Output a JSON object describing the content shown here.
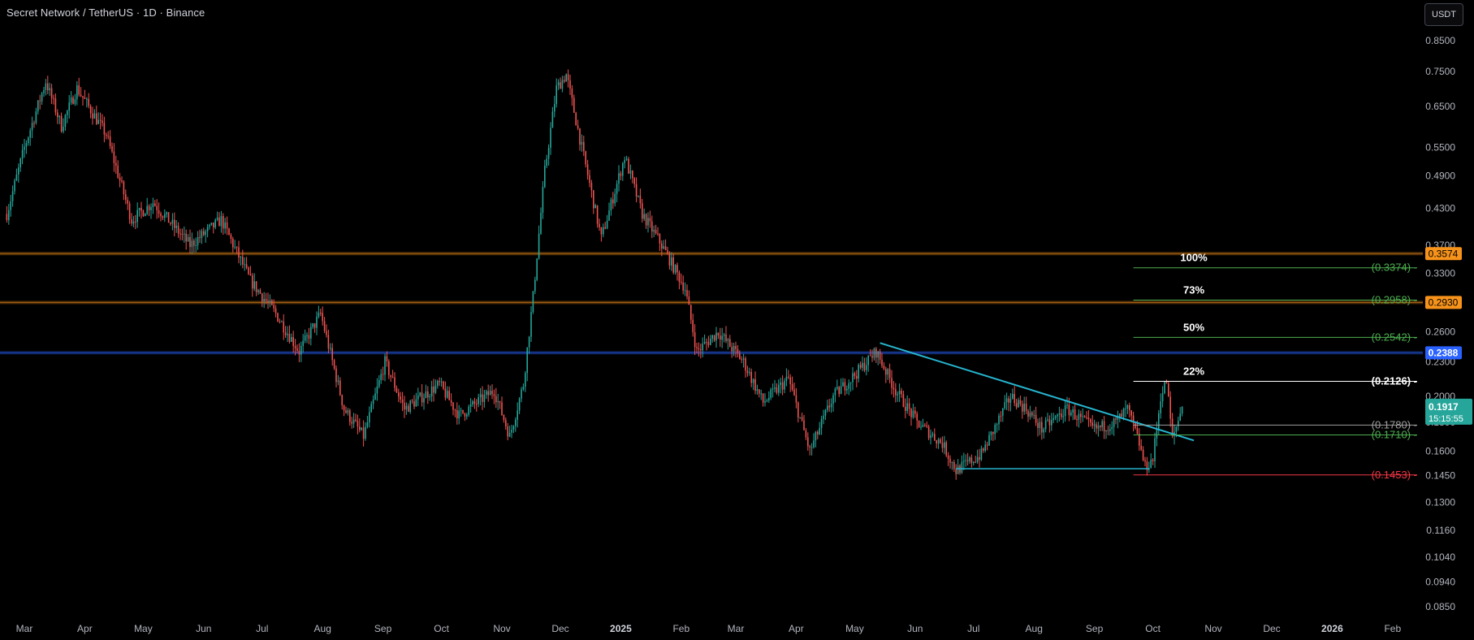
{
  "header": {
    "title": "Secret Network / TetherUS · 1D · Binance",
    "currency_button": "USDT"
  },
  "colors": {
    "background": "#000000",
    "up": "#26a69a",
    "down": "#ef5350",
    "trendline": "#26b5cf",
    "support_line": "#26b5cf",
    "level_white": "#ffffff",
    "level_green": "#4caf50",
    "level_gray": "#9e9e9e",
    "level_red": "#f23645",
    "band_orange": "#f7931a",
    "band_blue": "#2962ff",
    "axis_text": "#b2b5be"
  },
  "chart_data": {
    "type": "candlestick",
    "symbol": "Secret Network / TetherUS",
    "interval": "1D",
    "exchange": "Binance",
    "y_scale": "log",
    "ylim": [
      0.082,
      0.89
    ],
    "price_ticks": [
      "0.8500",
      "0.7500",
      "0.6500",
      "0.5500",
      "0.4900",
      "0.4300",
      "0.3700",
      "0.3300",
      "0.2900",
      "0.2600",
      "0.2300",
      "0.2000",
      "0.1800",
      "0.1600",
      "0.1450",
      "0.1300",
      "0.1160",
      "0.1040",
      "0.0940",
      "0.0850"
    ],
    "time_ticks": [
      {
        "label": "Mar",
        "date": "2024-03-01",
        "bold": false
      },
      {
        "label": "Apr",
        "date": "2024-04-01",
        "bold": false
      },
      {
        "label": "May",
        "date": "2024-05-01",
        "bold": false
      },
      {
        "label": "Jun",
        "date": "2024-06-01",
        "bold": false
      },
      {
        "label": "Jul",
        "date": "2024-07-01",
        "bold": false
      },
      {
        "label": "Aug",
        "date": "2024-08-01",
        "bold": false
      },
      {
        "label": "Sep",
        "date": "2024-09-01",
        "bold": false
      },
      {
        "label": "Oct",
        "date": "2024-10-01",
        "bold": false
      },
      {
        "label": "Nov",
        "date": "2024-11-01",
        "bold": false
      },
      {
        "label": "Dec",
        "date": "2024-12-01",
        "bold": false
      },
      {
        "label": "2025",
        "date": "2025-01-01",
        "bold": true
      },
      {
        "label": "Feb",
        "date": "2025-02-01",
        "bold": false
      },
      {
        "label": "Mar",
        "date": "2025-03-01",
        "bold": false
      },
      {
        "label": "Apr",
        "date": "2025-04-01",
        "bold": false
      },
      {
        "label": "May",
        "date": "2025-05-01",
        "bold": false
      },
      {
        "label": "Jun",
        "date": "2025-06-01",
        "bold": false
      },
      {
        "label": "Jul",
        "date": "2025-07-01",
        "bold": false
      },
      {
        "label": "Aug",
        "date": "2025-08-01",
        "bold": false
      },
      {
        "label": "Sep",
        "date": "2025-09-01",
        "bold": false
      },
      {
        "label": "Oct",
        "date": "2025-10-01",
        "bold": false
      },
      {
        "label": "Nov",
        "date": "2025-11-01",
        "bold": false
      },
      {
        "label": "Dec",
        "date": "2025-12-01",
        "bold": false
      },
      {
        "label": "2026",
        "date": "2026-01-01",
        "bold": true
      },
      {
        "label": "Feb",
        "date": "2026-02-01",
        "bold": false
      }
    ],
    "first_date": "2024-02-21",
    "last_date": "2025-10-16",
    "price_path_anchors": [
      {
        "date": "2024-02-21",
        "price": 0.42
      },
      {
        "date": "2024-03-01",
        "price": 0.55
      },
      {
        "date": "2024-03-12",
        "price": 0.72
      },
      {
        "date": "2024-03-20",
        "price": 0.6
      },
      {
        "date": "2024-03-28",
        "price": 0.7
      },
      {
        "date": "2024-04-12",
        "price": 0.58
      },
      {
        "date": "2024-04-25",
        "price": 0.41
      },
      {
        "date": "2024-05-06",
        "price": 0.44
      },
      {
        "date": "2024-05-25",
        "price": 0.37
      },
      {
        "date": "2024-06-10",
        "price": 0.41
      },
      {
        "date": "2024-06-25",
        "price": 0.32
      },
      {
        "date": "2024-07-08",
        "price": 0.28
      },
      {
        "date": "2024-07-20",
        "price": 0.24
      },
      {
        "date": "2024-07-31",
        "price": 0.28
      },
      {
        "date": "2024-08-12",
        "price": 0.19
      },
      {
        "date": "2024-08-22",
        "price": 0.17
      },
      {
        "date": "2024-09-02",
        "price": 0.23
      },
      {
        "date": "2024-09-12",
        "price": 0.19
      },
      {
        "date": "2024-09-30",
        "price": 0.21
      },
      {
        "date": "2024-10-10",
        "price": 0.185
      },
      {
        "date": "2024-10-28",
        "price": 0.205
      },
      {
        "date": "2024-11-05",
        "price": 0.17
      },
      {
        "date": "2024-11-12",
        "price": 0.21
      },
      {
        "date": "2024-11-17",
        "price": 0.3
      },
      {
        "date": "2024-11-23",
        "price": 0.5
      },
      {
        "date": "2024-11-29",
        "price": 0.7
      },
      {
        "date": "2024-12-04",
        "price": 0.74
      },
      {
        "date": "2024-12-12",
        "price": 0.55
      },
      {
        "date": "2024-12-22",
        "price": 0.38
      },
      {
        "date": "2025-01-03",
        "price": 0.53
      },
      {
        "date": "2025-01-12",
        "price": 0.42
      },
      {
        "date": "2025-01-22",
        "price": 0.37
      },
      {
        "date": "2025-02-03",
        "price": 0.31
      },
      {
        "date": "2025-02-09",
        "price": 0.24
      },
      {
        "date": "2025-02-20",
        "price": 0.26
      },
      {
        "date": "2025-03-05",
        "price": 0.23
      },
      {
        "date": "2025-03-15",
        "price": 0.195
      },
      {
        "date": "2025-03-28",
        "price": 0.215
      },
      {
        "date": "2025-04-08",
        "price": 0.16
      },
      {
        "date": "2025-04-20",
        "price": 0.2
      },
      {
        "date": "2025-05-02",
        "price": 0.22
      },
      {
        "date": "2025-05-12",
        "price": 0.24
      },
      {
        "date": "2025-05-22",
        "price": 0.205
      },
      {
        "date": "2025-06-02",
        "price": 0.18
      },
      {
        "date": "2025-06-15",
        "price": 0.165
      },
      {
        "date": "2025-06-22",
        "price": 0.148
      },
      {
        "date": "2025-07-05",
        "price": 0.158
      },
      {
        "date": "2025-07-20",
        "price": 0.2
      },
      {
        "date": "2025-07-28",
        "price": 0.19
      },
      {
        "date": "2025-08-05",
        "price": 0.175
      },
      {
        "date": "2025-08-18",
        "price": 0.19
      },
      {
        "date": "2025-09-01",
        "price": 0.175
      },
      {
        "date": "2025-09-12",
        "price": 0.18
      },
      {
        "date": "2025-09-18",
        "price": 0.19
      },
      {
        "date": "2025-09-24",
        "price": 0.165
      },
      {
        "date": "2025-09-27",
        "price": 0.15
      },
      {
        "date": "2025-10-01",
        "price": 0.155
      },
      {
        "date": "2025-10-05",
        "price": 0.2
      },
      {
        "date": "2025-10-08",
        "price": 0.2126
      },
      {
        "date": "2025-10-11",
        "price": 0.168
      },
      {
        "date": "2025-10-16",
        "price": 0.1917
      }
    ],
    "horizontal_bands": [
      {
        "price": 0.3574,
        "color": "orange",
        "tag": "0.3574"
      },
      {
        "price": 0.293,
        "color": "orange",
        "tag": "0.2930"
      },
      {
        "price": 0.2388,
        "color": "blue",
        "tag": "0.2388"
      }
    ],
    "levels": [
      {
        "price": 0.3374,
        "label": "(0.3374) -",
        "percent": "100%",
        "style": "green"
      },
      {
        "price": 0.2958,
        "label": "(0.2958) -",
        "percent": "73%",
        "style": "green"
      },
      {
        "price": 0.2542,
        "label": "(0.2542) -",
        "percent": "50%",
        "style": "green"
      },
      {
        "price": 0.2126,
        "label": "(0.2126) -",
        "percent": "22%",
        "style": "white"
      },
      {
        "price": 0.178,
        "label": "(0.1780) -",
        "percent": "",
        "style": "gray"
      },
      {
        "price": 0.171,
        "label": "(0.1710) -",
        "percent": "",
        "style": "green"
      },
      {
        "price": 0.1453,
        "label": "(0.1453) -",
        "percent": "",
        "style": "red"
      }
    ],
    "levels_start_date": "2025-09-21",
    "trendline": {
      "from_date": "2025-05-14",
      "from_price": 0.2485,
      "to_date": "2025-10-22",
      "to_price": 0.1672
    },
    "support_line": {
      "from_date": "2025-06-22",
      "to_date": "2025-09-29",
      "price": 0.149
    },
    "last_price": {
      "value": "0.1917",
      "countdown": "15:15:55"
    }
  }
}
